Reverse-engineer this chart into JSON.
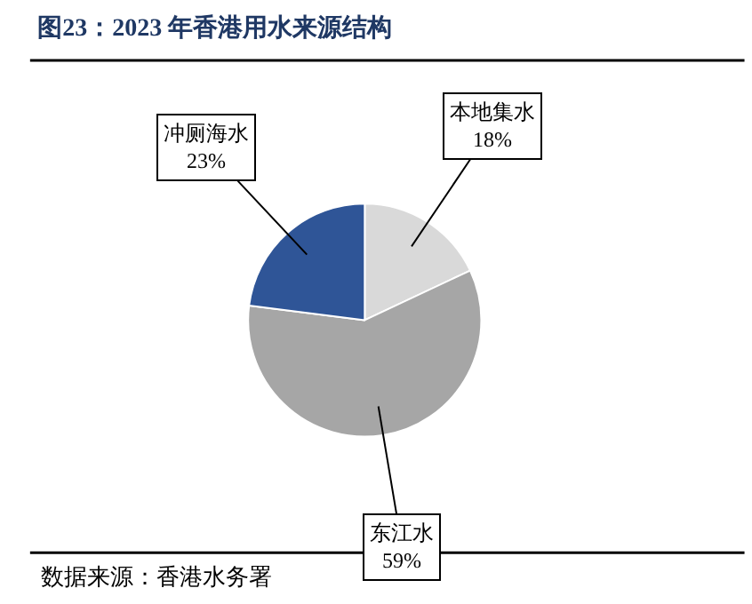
{
  "chart_data": {
    "type": "pie",
    "title": "图23：2023 年香港用水来源结构",
    "categories": [
      "本地集水",
      "东江水",
      "冲厕海水"
    ],
    "values": [
      18,
      59,
      23
    ],
    "value_labels": [
      "18%",
      "59%",
      "23%"
    ],
    "colors": [
      "#d9d9d9",
      "#a6a6a6",
      "#2f5597"
    ],
    "annotations": [
      "数据来源：香港水务署"
    ]
  }
}
